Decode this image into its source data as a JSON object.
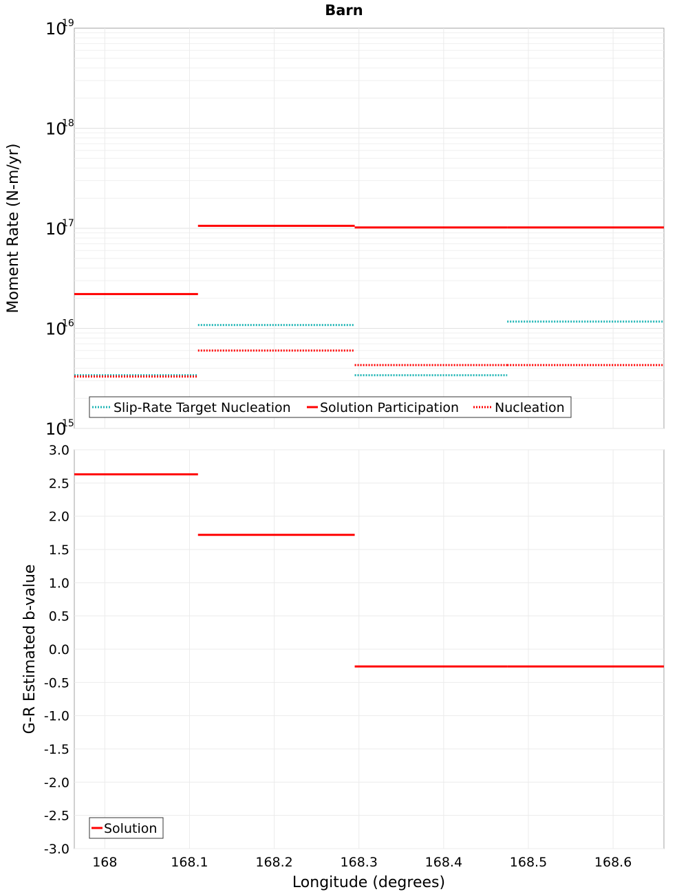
{
  "chart_data": [
    {
      "type": "line",
      "title": "Barn",
      "ylabel": "Moment Rate (N-m/yr)",
      "xlabel": "",
      "yscale": "log",
      "xlim": [
        167.964,
        168.66
      ],
      "ylim_exp": [
        15,
        19
      ],
      "y_tick_labels": [
        {
          "exp": 19,
          "base": "10",
          "sup": "19"
        },
        {
          "exp": 18,
          "base": "10",
          "sup": "18"
        },
        {
          "exp": 17,
          "base": "10",
          "sup": "17"
        },
        {
          "exp": 16,
          "base": "10",
          "sup": "16"
        },
        {
          "exp": 15,
          "base": "10",
          "sup": "15"
        }
      ],
      "legend": {
        "placement": "bottom-left",
        "entries": [
          {
            "name": "Slip-Rate Target Nucleation",
            "color": "#1fb5b5",
            "style": "dotted"
          },
          {
            "name": "Solution Participation",
            "color": "#ff0000",
            "style": "solid"
          },
          {
            "name": "Nucleation",
            "color": "#ff0000",
            "style": "dotted"
          }
        ]
      },
      "series": [
        {
          "name": "Slip-Rate Target Nucleation",
          "color": "#1fb5b5",
          "style": "dotted",
          "segments": [
            {
              "x0": 167.964,
              "x1": 168.11,
              "y": 3400000000000000.0
            },
            {
              "x0": 168.11,
              "x1": 168.295,
              "y": 1.08e+16
            },
            {
              "x0": 168.295,
              "x1": 168.475,
              "y": 3400000000000000.0
            },
            {
              "x0": 168.475,
              "x1": 168.66,
              "y": 1.17e+16
            }
          ]
        },
        {
          "name": "Solution Participation",
          "color": "#ff0000",
          "style": "solid",
          "segments": [
            {
              "x0": 167.964,
              "x1": 168.11,
              "y": 2.2e+16
            },
            {
              "x0": 168.11,
              "x1": 168.295,
              "y": 1.06e+17
            },
            {
              "x0": 168.295,
              "x1": 168.475,
              "y": 1.02e+17
            },
            {
              "x0": 168.475,
              "x1": 168.66,
              "y": 1.02e+17
            }
          ]
        },
        {
          "name": "Nucleation",
          "color": "#ff0000",
          "style": "dotted",
          "segments": [
            {
              "x0": 167.964,
              "x1": 168.11,
              "y": 3300000000000000.0
            },
            {
              "x0": 168.11,
              "x1": 168.295,
              "y": 6000000000000000.0
            },
            {
              "x0": 168.295,
              "x1": 168.475,
              "y": 4300000000000000.0
            },
            {
              "x0": 168.475,
              "x1": 168.66,
              "y": 4300000000000000.0
            }
          ]
        }
      ]
    },
    {
      "type": "line",
      "title": "",
      "ylabel": "G-R Estimated b-value",
      "xlabel": "Longitude (degrees)",
      "xlim": [
        167.964,
        168.66
      ],
      "ylim": [
        -3.0,
        3.0
      ],
      "y_ticks": [
        3.0,
        2.5,
        2.0,
        1.5,
        1.0,
        0.5,
        0.0,
        -0.5,
        -1.0,
        -1.5,
        -2.0,
        -2.5,
        -3.0
      ],
      "y_tick_labels": [
        "3.0",
        "2.5",
        "2.0",
        "1.5",
        "1.0",
        "0.5",
        "0.0",
        "-0.5",
        "-1.0",
        "-1.5",
        "-2.0",
        "-2.5",
        "-3.0"
      ],
      "x_ticks": [
        168.0,
        168.1,
        168.2,
        168.3,
        168.4,
        168.5,
        168.6
      ],
      "x_tick_labels": [
        "168",
        "168.1",
        "168.2",
        "168.3",
        "168.4",
        "168.5",
        "168.6"
      ],
      "legend": {
        "placement": "bottom-left",
        "entries": [
          {
            "name": "Solution",
            "color": "#ff0000",
            "style": "solid"
          }
        ]
      },
      "series": [
        {
          "name": "Solution",
          "color": "#ff0000",
          "style": "solid",
          "segments": [
            {
              "x0": 167.964,
              "x1": 168.11,
              "y": 2.63
            },
            {
              "x0": 168.11,
              "x1": 168.295,
              "y": 1.72
            },
            {
              "x0": 168.295,
              "x1": 168.475,
              "y": -0.26
            },
            {
              "x0": 168.475,
              "x1": 168.66,
              "y": -0.26
            }
          ]
        }
      ]
    }
  ]
}
